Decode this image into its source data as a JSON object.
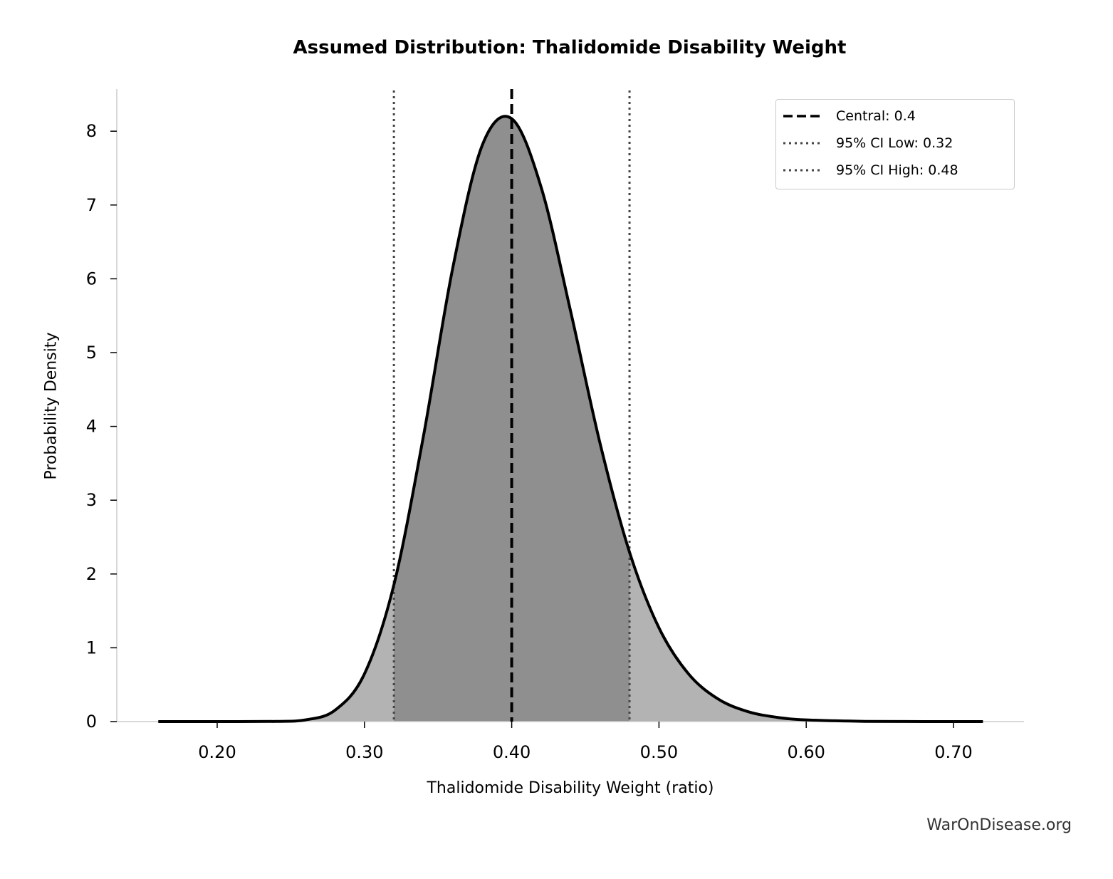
{
  "chart_data": {
    "type": "area",
    "title": "Assumed Distribution: Thalidomide Disability Weight",
    "xlabel": "Thalidomide Disability Weight (ratio)",
    "ylabel": "Probability Density",
    "xlim": [
      0.13,
      0.75
    ],
    "ylim": [
      0,
      8.6
    ],
    "xticks": [
      "0.20",
      "0.30",
      "0.40",
      "0.50",
      "0.60",
      "0.70"
    ],
    "yticks": [
      "0",
      "1",
      "2",
      "3",
      "4",
      "5",
      "6",
      "7",
      "8"
    ],
    "grid": false,
    "legend_position": "top-right",
    "x": [
      0.16,
      0.2,
      0.24,
      0.26,
      0.28,
      0.3,
      0.32,
      0.34,
      0.36,
      0.38,
      0.4,
      0.42,
      0.44,
      0.46,
      0.48,
      0.5,
      0.52,
      0.54,
      0.56,
      0.58,
      0.6,
      0.64,
      0.68,
      0.72
    ],
    "y": [
      0,
      0,
      0.002,
      0.023,
      0.154,
      0.646,
      1.854,
      3.861,
      6.15,
      7.81,
      8.17,
      7.24,
      5.56,
      3.77,
      2.296,
      1.27,
      0.648,
      0.308,
      0.137,
      0.058,
      0.023,
      0.003,
      0.0005,
      0
    ],
    "central": 0.4,
    "ci_low": 0.32,
    "ci_high": 0.48,
    "legend": [
      "Central: 0.4",
      "95% CI Low: 0.32",
      "95% CI High: 0.48"
    ],
    "colors": {
      "tail_fill": "#b3b3b3",
      "ci_fill": "#8f8f8f",
      "curve": "#000000",
      "ci_lines": "#444444",
      "spines": "#cccccc"
    }
  },
  "credit": "WarOnDisease.org"
}
